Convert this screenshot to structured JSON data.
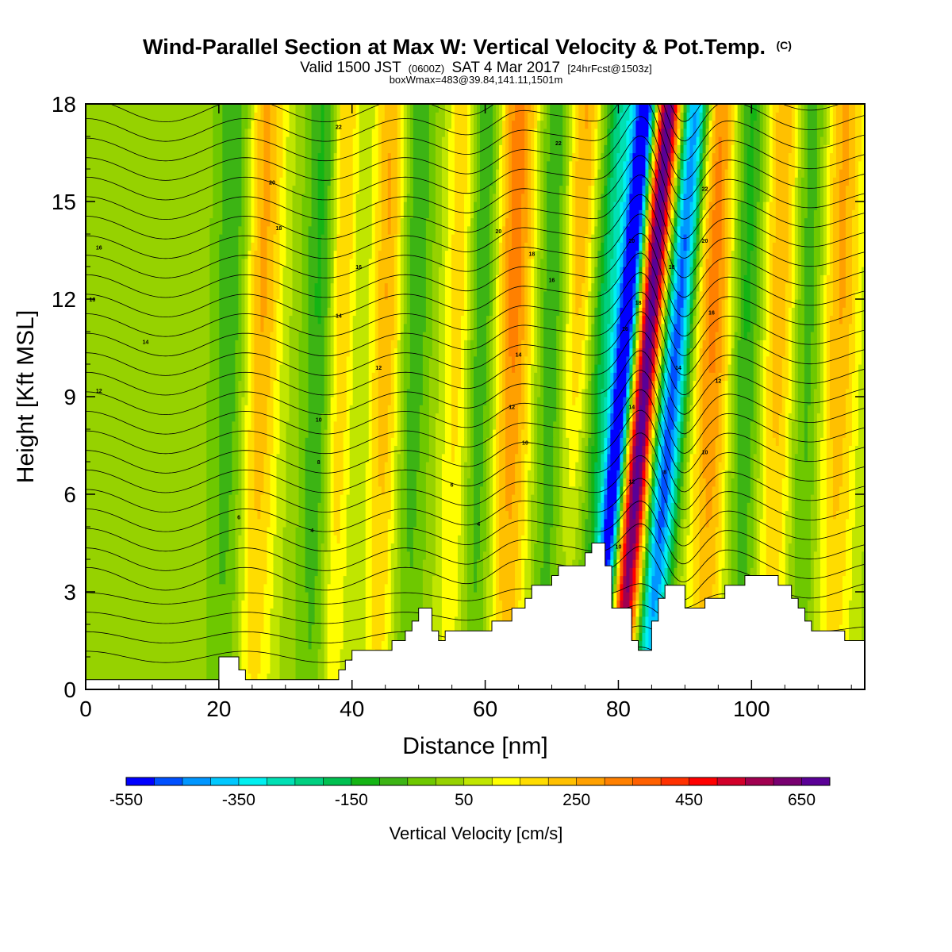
{
  "title": {
    "main": "Wind-Parallel Section at Max W: Vertical Velocity & Pot.Temp.",
    "main_suffix": "(C)",
    "valid_prefix": "Valid 1500 JST",
    "valid_zulu": "(0600Z)",
    "valid_date": "SAT 4 Mar 2017",
    "valid_fcst": "[24hrFcst@1503z]",
    "box_info": "boxWmax=483@39.84,141.11,1501m"
  },
  "chart_data": {
    "type": "heatmap",
    "xlabel": "Distance [nm]",
    "ylabel": "Height [Kft MSL]",
    "xlim": [
      0,
      117
    ],
    "ylim": [
      0,
      18
    ],
    "x_ticks": [
      0,
      20,
      40,
      60,
      80,
      100
    ],
    "y_ticks": [
      0,
      3,
      6,
      9,
      12,
      15,
      18
    ],
    "colorbar": {
      "label": "Vertical Velocity [cm/s]",
      "levels": [
        -550,
        -500,
        -450,
        -400,
        -350,
        -300,
        -250,
        -200,
        -150,
        -100,
        -50,
        0,
        50,
        100,
        150,
        200,
        250,
        300,
        350,
        400,
        450,
        500,
        550,
        600,
        650,
        700
      ],
      "tick_labels": [
        "-550",
        "-350",
        "-150",
        "50",
        "250",
        "450",
        "650"
      ],
      "colors": [
        "#0000ff",
        "#0050ff",
        "#0096ff",
        "#00c8ff",
        "#00f0f0",
        "#00e0b4",
        "#00d080",
        "#00c050",
        "#14b414",
        "#3cb414",
        "#6ec800",
        "#96d200",
        "#c0e600",
        "#ffff00",
        "#ffdc00",
        "#ffc000",
        "#ffa000",
        "#ff8000",
        "#ff6000",
        "#ff3000",
        "#ff0000",
        "#d2002a",
        "#a00050",
        "#780070",
        "#5a0096"
      ]
    },
    "wave_bands": [
      {
        "x": 22,
        "w": 3,
        "peak": -150
      },
      {
        "x": 26,
        "w": 3,
        "peak": 250
      },
      {
        "x": 35,
        "w": 2.5,
        "peak": -150
      },
      {
        "x": 38,
        "w": 2,
        "peak": 200
      },
      {
        "x": 45,
        "w": 2.5,
        "peak": 230
      },
      {
        "x": 49,
        "w": 2.5,
        "peak": -130
      },
      {
        "x": 56,
        "w": 2.5,
        "peak": 180
      },
      {
        "x": 59,
        "w": 2.5,
        "peak": -180
      },
      {
        "x": 64,
        "w": 3,
        "peak": 300
      },
      {
        "x": 70,
        "w": 2.5,
        "peak": -160
      },
      {
        "x": 74,
        "w": 3,
        "peak": 250
      },
      {
        "x": 77.5,
        "w": 3.5,
        "peak": -300
      },
      {
        "x": 80.5,
        "w": 1.6,
        "peak": -550
      },
      {
        "x": 83.8,
        "w": 2,
        "peak": 680
      },
      {
        "x": 88,
        "w": 2.2,
        "peak": -520
      },
      {
        "x": 94,
        "w": 3,
        "peak": 300
      },
      {
        "x": 99,
        "w": 2.5,
        "peak": -170
      },
      {
        "x": 104,
        "w": 3,
        "peak": 220
      },
      {
        "x": 108,
        "w": 2.5,
        "peak": -150
      },
      {
        "x": 113,
        "w": 3,
        "peak": 230
      }
    ],
    "terrain": [
      [
        0,
        0.3
      ],
      [
        20,
        0.3
      ],
      [
        20,
        1
      ],
      [
        23,
        1
      ],
      [
        23,
        0.6
      ],
      [
        24,
        0.6
      ],
      [
        24,
        0.3
      ],
      [
        38,
        0.3
      ],
      [
        38,
        0.6
      ],
      [
        39,
        0.6
      ],
      [
        39,
        0.9
      ],
      [
        40,
        0.9
      ],
      [
        40,
        1.2
      ],
      [
        46,
        1.2
      ],
      [
        46,
        1.5
      ],
      [
        48,
        1.5
      ],
      [
        48,
        1.8
      ],
      [
        49,
        1.8
      ],
      [
        49,
        2.1
      ],
      [
        50,
        2.1
      ],
      [
        50,
        2.5
      ],
      [
        52,
        2.5
      ],
      [
        52,
        1.8
      ],
      [
        53,
        1.8
      ],
      [
        53,
        1.5
      ],
      [
        54,
        1.5
      ],
      [
        54,
        1.8
      ],
      [
        61,
        1.8
      ],
      [
        61,
        2.1
      ],
      [
        64,
        2.1
      ],
      [
        64,
        2.5
      ],
      [
        66,
        2.5
      ],
      [
        66,
        2.8
      ],
      [
        67,
        2.8
      ],
      [
        67,
        3.2
      ],
      [
        70,
        3.2
      ],
      [
        70,
        3.5
      ],
      [
        71,
        3.5
      ],
      [
        71,
        3.8
      ],
      [
        75,
        3.8
      ],
      [
        75,
        4.2
      ],
      [
        76,
        4.2
      ],
      [
        76,
        4.5
      ],
      [
        78,
        4.5
      ],
      [
        78,
        3.8
      ],
      [
        79,
        3.8
      ],
      [
        79,
        2.5
      ],
      [
        82,
        2.5
      ],
      [
        82,
        1.5
      ],
      [
        83,
        1.5
      ],
      [
        83,
        1.2
      ],
      [
        85,
        1.2
      ],
      [
        85,
        2.1
      ],
      [
        86,
        2.1
      ],
      [
        86,
        2.8
      ],
      [
        87,
        2.8
      ],
      [
        87,
        3.2
      ],
      [
        90,
        3.2
      ],
      [
        90,
        2.5
      ],
      [
        93,
        2.5
      ],
      [
        93,
        2.8
      ],
      [
        96,
        2.8
      ],
      [
        96,
        3.2
      ],
      [
        99,
        3.2
      ],
      [
        99,
        3.5
      ],
      [
        104,
        3.5
      ],
      [
        104,
        3.2
      ],
      [
        106,
        3.2
      ],
      [
        106,
        2.8
      ],
      [
        107,
        2.8
      ],
      [
        107,
        2.5
      ],
      [
        108,
        2.5
      ],
      [
        108,
        2.1
      ],
      [
        109,
        2.1
      ],
      [
        109,
        1.8
      ],
      [
        114,
        1.8
      ],
      [
        114,
        1.5
      ],
      [
        117,
        1.5
      ]
    ],
    "contour_levels": [
      {
        "z0": 2.8,
        "label": "4"
      },
      {
        "z0": 4.5,
        "label": "6"
      },
      {
        "z0": 6.2,
        "label": "8"
      },
      {
        "z0": 8.0,
        "label": "10"
      },
      {
        "z0": 9.5,
        "label": "12"
      },
      {
        "z0": 11.3,
        "label": "14"
      },
      {
        "z0": 12.8,
        "label": "16"
      },
      {
        "z0": 14.3,
        "label": "18"
      },
      {
        "z0": 16.0,
        "label": "20"
      },
      {
        "z0": 17.4,
        "label": "22"
      }
    ],
    "contour_labels": [
      {
        "x": 2,
        "z": 13.6,
        "label": "16"
      },
      {
        "x": 1,
        "z": 12.0,
        "label": "16"
      },
      {
        "x": 9,
        "z": 10.7,
        "label": "14"
      },
      {
        "x": 2,
        "z": 9.2,
        "label": "12"
      },
      {
        "x": 28,
        "z": 15.6,
        "label": "20"
      },
      {
        "x": 29,
        "z": 14.2,
        "label": "18"
      },
      {
        "x": 41,
        "z": 13.0,
        "label": "16"
      },
      {
        "x": 38,
        "z": 11.5,
        "label": "14"
      },
      {
        "x": 44,
        "z": 9.9,
        "label": "12"
      },
      {
        "x": 35,
        "z": 8.3,
        "label": "10"
      },
      {
        "x": 35,
        "z": 7.0,
        "label": "8"
      },
      {
        "x": 23,
        "z": 5.3,
        "label": "6"
      },
      {
        "x": 34,
        "z": 4.9,
        "label": "4"
      },
      {
        "x": 38,
        "z": 17.3,
        "label": "22"
      },
      {
        "x": 55,
        "z": 6.3,
        "label": "6"
      },
      {
        "x": 59,
        "z": 5.1,
        "label": "4"
      },
      {
        "x": 62,
        "z": 14.1,
        "label": "20"
      },
      {
        "x": 67,
        "z": 13.4,
        "label": "18"
      },
      {
        "x": 70,
        "z": 12.6,
        "label": "16"
      },
      {
        "x": 65,
        "z": 10.3,
        "label": "14"
      },
      {
        "x": 64,
        "z": 8.7,
        "label": "12"
      },
      {
        "x": 66,
        "z": 7.6,
        "label": "10"
      },
      {
        "x": 71,
        "z": 16.8,
        "label": "22"
      },
      {
        "x": 82,
        "z": 13.8,
        "label": "20"
      },
      {
        "x": 83,
        "z": 11.9,
        "label": "18"
      },
      {
        "x": 81,
        "z": 11.1,
        "label": "16"
      },
      {
        "x": 82,
        "z": 8.7,
        "label": "14"
      },
      {
        "x": 82,
        "z": 6.4,
        "label": "12"
      },
      {
        "x": 80,
        "z": 4.4,
        "label": "10"
      },
      {
        "x": 88,
        "z": 13.0,
        "label": "18"
      },
      {
        "x": 89,
        "z": 9.9,
        "label": "14"
      },
      {
        "x": 87,
        "z": 6.7,
        "label": "8"
      },
      {
        "x": 93,
        "z": 15.4,
        "label": "22"
      },
      {
        "x": 93,
        "z": 13.8,
        "label": "20"
      },
      {
        "x": 94,
        "z": 11.6,
        "label": "16"
      },
      {
        "x": 95,
        "z": 9.5,
        "label": "12"
      },
      {
        "x": 93,
        "z": 7.3,
        "label": "10"
      }
    ]
  }
}
